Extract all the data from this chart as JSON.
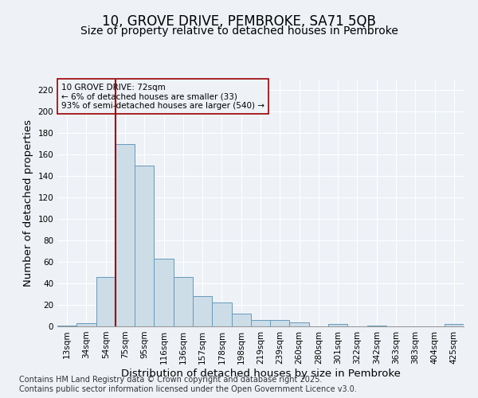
{
  "title1": "10, GROVE DRIVE, PEMBROKE, SA71 5QB",
  "title2": "Size of property relative to detached houses in Pembroke",
  "xlabel": "Distribution of detached houses by size in Pembroke",
  "ylabel": "Number of detached properties",
  "bins": [
    "13sqm",
    "34sqm",
    "54sqm",
    "75sqm",
    "95sqm",
    "116sqm",
    "136sqm",
    "157sqm",
    "178sqm",
    "198sqm",
    "219sqm",
    "239sqm",
    "260sqm",
    "280sqm",
    "301sqm",
    "322sqm",
    "342sqm",
    "363sqm",
    "383sqm",
    "404sqm",
    "425sqm"
  ],
  "values": [
    1,
    3,
    46,
    170,
    150,
    63,
    46,
    28,
    22,
    12,
    6,
    6,
    4,
    0,
    2,
    0,
    1,
    0,
    0,
    0,
    2
  ],
  "bar_color": "#ccdde8",
  "bar_edge_color": "#6699bb",
  "vline_x_index": 3,
  "vline_color": "#990000",
  "annotation_line1": "10 GROVE DRIVE: 72sqm",
  "annotation_line2": "← 6% of detached houses are smaller (33)",
  "annotation_line3": "93% of semi-detached houses are larger (540) →",
  "annotation_box_color": "#990000",
  "ylim": [
    0,
    230
  ],
  "yticks": [
    0,
    20,
    40,
    60,
    80,
    100,
    120,
    140,
    160,
    180,
    200,
    220
  ],
  "footnote1": "Contains HM Land Registry data © Crown copyright and database right 2025.",
  "footnote2": "Contains public sector information licensed under the Open Government Licence v3.0.",
  "title1_fontsize": 12,
  "title2_fontsize": 10,
  "axis_label_fontsize": 9.5,
  "tick_fontsize": 7.5,
  "annotation_fontsize": 7.5,
  "footnote_fontsize": 7,
  "background_color": "#eef2f7",
  "plot_bg_color": "#eef2f7",
  "grid_color": "#ffffff"
}
